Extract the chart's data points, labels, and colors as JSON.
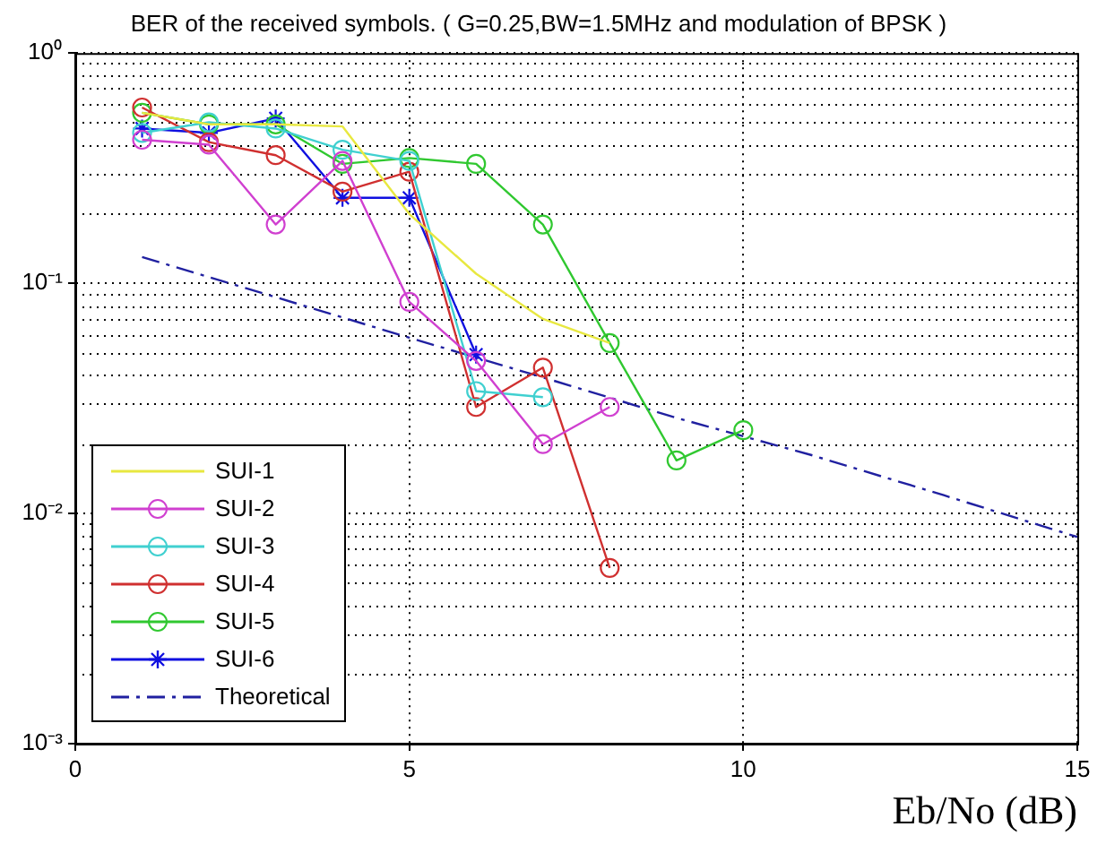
{
  "chart_data": {
    "type": "line",
    "title": "BER of the received symbols. ( G=0.25,BW=1.5MHz and modulation of BPSK )",
    "xlabel": "Eb/No (dB)",
    "log": "y",
    "grid": true,
    "legend": "bottom left",
    "xlim": [
      0,
      15
    ],
    "xticks": [
      0,
      5,
      10,
      15
    ],
    "ylim": [
      0.001,
      1
    ],
    "yticks": [
      {
        "value": 0.001,
        "label": "10⁻³"
      },
      {
        "value": 0.01,
        "label": "10⁻²"
      },
      {
        "value": 0.1,
        "label": "10⁻¹"
      },
      {
        "value": 1,
        "label": "10⁰"
      }
    ],
    "series": [
      {
        "name": "SUI-1",
        "color": "#e8e840",
        "marker": "none",
        "x": [
          1,
          2,
          3,
          4,
          5,
          6,
          7,
          8
        ],
        "values": [
          0.55,
          0.49,
          0.49,
          0.48,
          0.2,
          0.11,
          0.07,
          0.055
        ]
      },
      {
        "name": "SUI-2",
        "color": "#d040d0",
        "marker": "circle",
        "x": [
          1,
          2,
          3,
          4,
          5,
          6,
          7,
          8
        ],
        "values": [
          0.42,
          0.4,
          0.18,
          0.34,
          0.083,
          0.046,
          0.02,
          0.029
        ]
      },
      {
        "name": "SUI-3",
        "color": "#40d0d0",
        "marker": "circle",
        "x": [
          1,
          2,
          3,
          4,
          5,
          6,
          7
        ],
        "values": [
          0.45,
          0.5,
          0.47,
          0.38,
          0.34,
          0.034,
          0.032
        ]
      },
      {
        "name": "SUI-4",
        "color": "#d03030",
        "marker": "circle",
        "x": [
          1,
          2,
          3,
          4,
          5,
          6,
          7,
          8
        ],
        "values": [
          0.58,
          0.41,
          0.36,
          0.25,
          0.305,
          0.029,
          0.043,
          0.0058
        ]
      },
      {
        "name": "SUI-5",
        "color": "#30c830",
        "marker": "circle",
        "x": [
          1,
          2,
          3,
          4,
          5,
          6,
          7,
          8,
          9,
          10
        ],
        "values": [
          0.55,
          0.49,
          0.49,
          0.33,
          0.35,
          0.33,
          0.18,
          0.055,
          0.017,
          0.023
        ]
      },
      {
        "name": "SUI-6",
        "color": "#1010e0",
        "marker": "cross",
        "x": [
          1,
          2,
          3,
          4,
          5,
          6
        ],
        "values": [
          0.47,
          0.45,
          0.52,
          0.235,
          0.235,
          0.049
        ]
      },
      {
        "name": "Theoretical",
        "color": "#2020a0",
        "marker": "none",
        "line_style": "dashed",
        "x": [
          1,
          3,
          5,
          7,
          9,
          11,
          13,
          15
        ],
        "values": [
          0.13,
          0.087,
          0.058,
          0.039,
          0.026,
          0.018,
          0.012,
          0.0079
        ]
      }
    ]
  }
}
